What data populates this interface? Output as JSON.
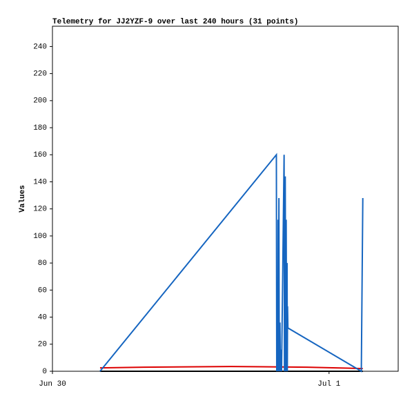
{
  "chart_data": {
    "type": "line",
    "title": "Telemetry for JJ2YZF-9 over last 240 hours (31 points)",
    "y_label": "Values",
    "xlim": [
      0,
      30
    ],
    "xticks": [
      {
        "value": 0,
        "label": "Jun 30"
      },
      {
        "value": 24,
        "label": "Jul 1"
      }
    ],
    "ylim": [
      0,
      255
    ],
    "yticks": [
      0,
      20,
      40,
      60,
      80,
      100,
      120,
      140,
      160,
      180,
      200,
      220,
      240
    ],
    "grid": false,
    "series": [
      {
        "color": "#1565c0",
        "x": [
          4.13,
          19.43,
          19.46,
          19.52,
          19.55,
          19.58,
          19.6,
          19.65,
          19.68,
          19.74,
          19.78,
          19.84,
          19.88,
          20.1,
          20.13,
          20.2,
          20.24,
          20.28,
          20.32,
          20.36,
          20.38,
          20.4,
          20.43,
          26.8,
          26.93
        ],
        "values": [
          0,
          160,
          0,
          48,
          0,
          112,
          0,
          128,
          0,
          36,
          0,
          16,
          0,
          160,
          0,
          144,
          0,
          112,
          0,
          80,
          0,
          48,
          32,
          0,
          128
        ]
      },
      {
        "color": "#dd0000",
        "x": [
          4.13,
          7.9,
          15.5,
          22.1,
          26.93
        ],
        "values": [
          2.5,
          3,
          3.5,
          3,
          2
        ]
      },
      {
        "color": "#000000",
        "x": [
          4.13,
          26.93
        ],
        "values": [
          0,
          0
        ]
      }
    ]
  }
}
